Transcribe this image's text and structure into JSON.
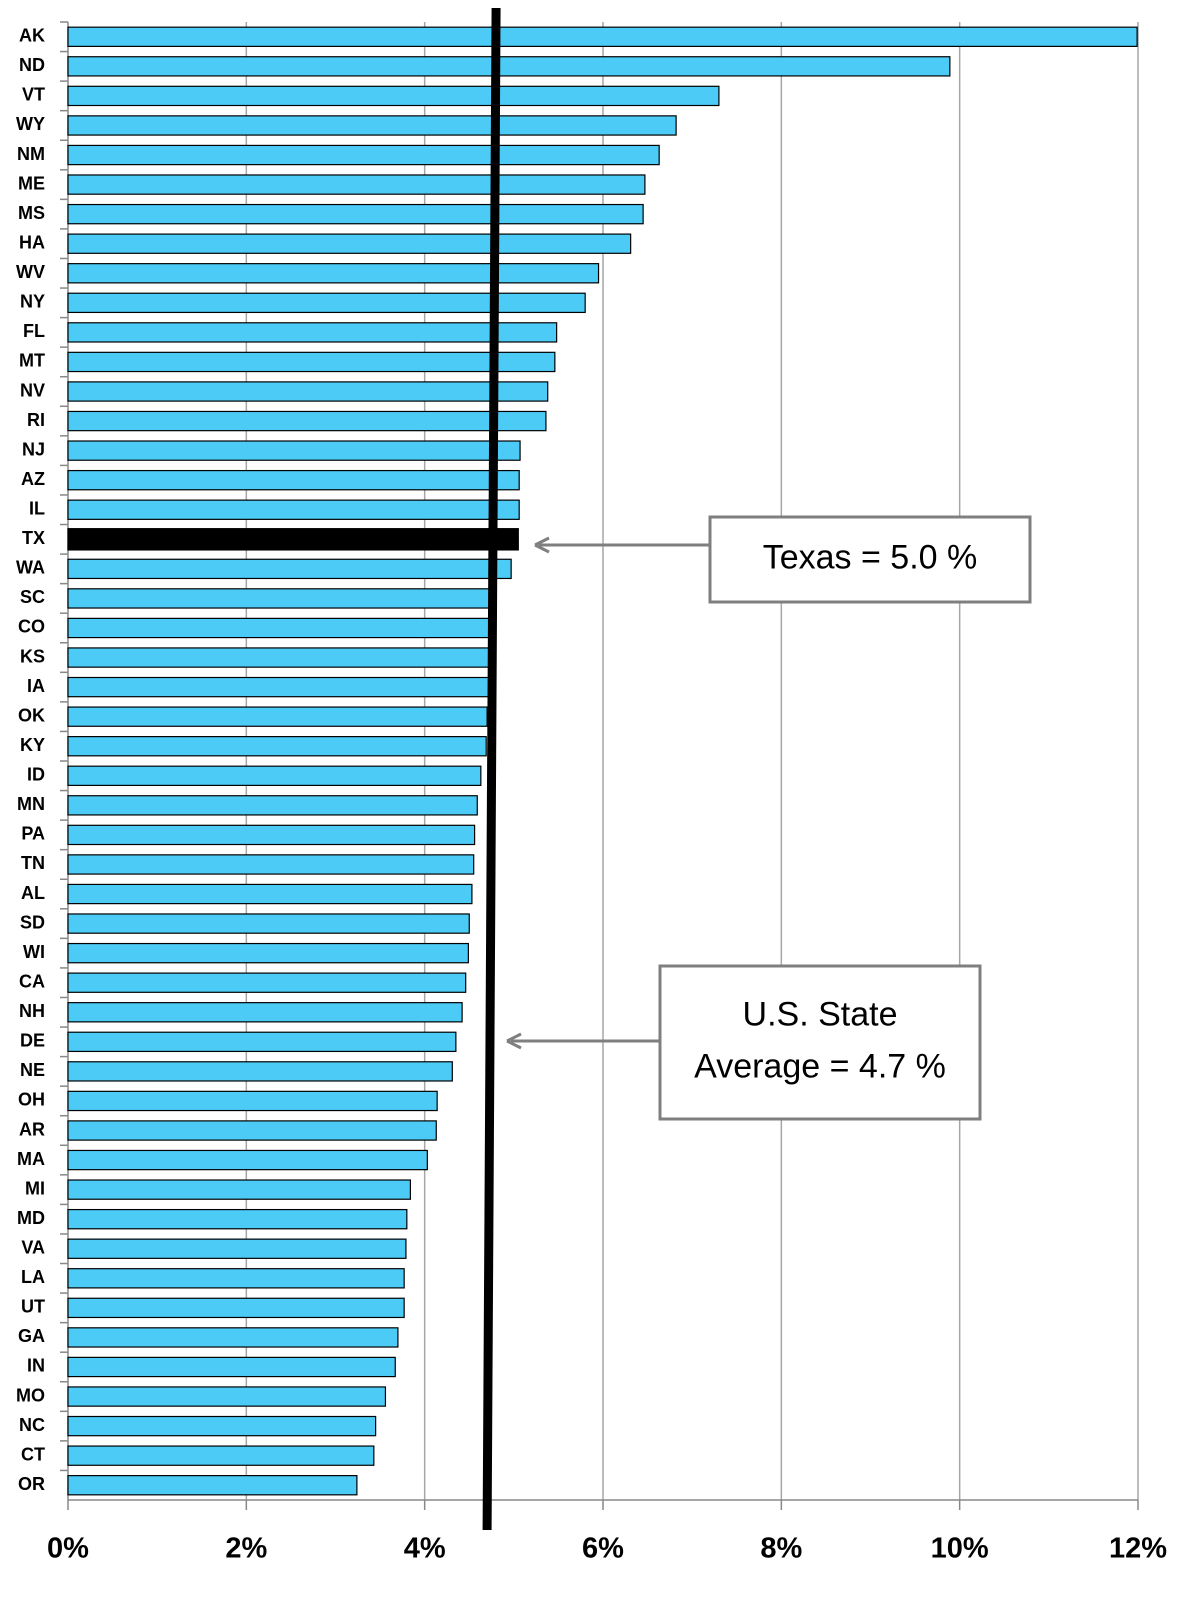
{
  "chart_data": {
    "type": "hbar",
    "categories": [
      "AK",
      "ND",
      "VT",
      "WY",
      "NM",
      "ME",
      "MS",
      "HA",
      "WV",
      "NY",
      "FL",
      "MT",
      "NV",
      "RI",
      "NJ",
      "AZ",
      "IL",
      "TX",
      "WA",
      "SC",
      "CO",
      "KS",
      "IA",
      "OK",
      "KY",
      "ID",
      "MN",
      "PA",
      "TN",
      "AL",
      "SD",
      "WI",
      "CA",
      "NH",
      "DE",
      "NE",
      "OH",
      "AR",
      "MA",
      "MI",
      "MD",
      "VA",
      "LA",
      "UT",
      "GA",
      "IN",
      "MO",
      "NC",
      "CT",
      "OR"
    ],
    "values": [
      11.99,
      9.89,
      7.3,
      6.82,
      6.63,
      6.47,
      6.45,
      6.31,
      5.95,
      5.8,
      5.48,
      5.46,
      5.38,
      5.36,
      5.07,
      5.06,
      5.06,
      5.05,
      4.97,
      4.73,
      4.73,
      4.72,
      4.72,
      4.7,
      4.69,
      4.63,
      4.59,
      4.56,
      4.55,
      4.53,
      4.5,
      4.49,
      4.46,
      4.42,
      4.35,
      4.31,
      4.14,
      4.13,
      4.03,
      3.84,
      3.8,
      3.79,
      3.77,
      3.77,
      3.7,
      3.67,
      3.56,
      3.45,
      3.43,
      3.24
    ],
    "color": "#4dcbf7",
    "highlight": {
      "category": "TX",
      "color": "#000000"
    },
    "xlim": [
      0,
      12
    ],
    "xticks": [
      {
        "value": 0,
        "label": "0%"
      },
      {
        "value": 2,
        "label": "2%"
      },
      {
        "value": 4,
        "label": "4%"
      },
      {
        "value": 6,
        "label": "6%"
      },
      {
        "value": 8,
        "label": "8%"
      },
      {
        "value": 10,
        "label": "10%"
      },
      {
        "value": 12,
        "label": "12%"
      }
    ],
    "grid": true,
    "reference_line": 4.7,
    "annotations": [
      {
        "lines": [
          "Texas = 5.0 %"
        ]
      },
      {
        "lines": [
          "U.S. State",
          "Average = 4.7 %"
        ]
      }
    ]
  }
}
